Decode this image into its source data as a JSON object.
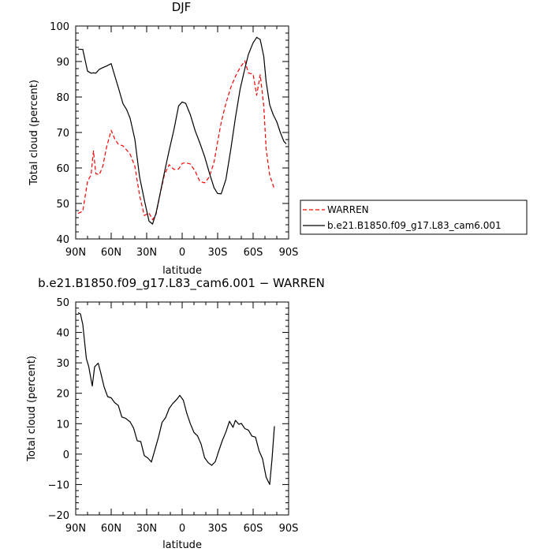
{
  "charts": [
    {
      "title": "DJF",
      "xlabel": "latitude",
      "ylabel": "Total cloud (percent)"
    },
    {
      "title": "b.e21.B1850.f09_g17.L83_cam6.001 − WARREN",
      "xlabel": "latitude",
      "ylabel": "Total cloud (percent)"
    }
  ],
  "legend": {
    "items": [
      {
        "label": "WARREN",
        "color": "#ff0000",
        "style": "dashed"
      },
      {
        "label": "b.e21.B1850.f09_g17.L83_cam6.001",
        "color": "#000000",
        "style": "solid"
      }
    ]
  },
  "chart_data": [
    {
      "type": "line",
      "title": "DJF",
      "xlabel": "latitude",
      "ylabel": "Total cloud (percent)",
      "xlim": [
        90,
        -90
      ],
      "ylim": [
        40,
        100
      ],
      "xticks": [
        90,
        60,
        30,
        0,
        -30,
        -60,
        -90
      ],
      "xtick_labels": [
        "90N",
        "60N",
        "30N",
        "0",
        "30S",
        "60S",
        "90S"
      ],
      "yticks": [
        40,
        50,
        60,
        70,
        80,
        90,
        100
      ],
      "ytick_labels": [
        "40",
        "50",
        "60",
        "70",
        "80",
        "90",
        "100"
      ],
      "grid": false,
      "legend_position": "right",
      "series": [
        {
          "name": "WARREN",
          "color": "#ff0000",
          "dash": true,
          "x": [
            88,
            84,
            80,
            77,
            75,
            73,
            70,
            67,
            64,
            60,
            57,
            54,
            50,
            47,
            44,
            40,
            36,
            32,
            28,
            25,
            22,
            19,
            15,
            11,
            7,
            3,
            0,
            -3,
            -7,
            -11,
            -15,
            -19,
            -23,
            -27,
            -30,
            -33,
            -37,
            -41,
            -45,
            -49,
            -53,
            -56,
            -60,
            -63,
            -66,
            -69,
            -71,
            -74,
            -77,
            -78
          ],
          "y": [
            47.2,
            47.8,
            56.2,
            58.1,
            64.8,
            58.4,
            58.1,
            60.6,
            65.7,
            70.6,
            68.2,
            66.7,
            66.2,
            65.1,
            63.9,
            60.5,
            52.3,
            46.6,
            47.3,
            45.4,
            47.1,
            52.1,
            58.1,
            60.9,
            59.6,
            59.7,
            61.3,
            61.5,
            61.1,
            59.1,
            56.2,
            55.8,
            57.5,
            61.7,
            67.4,
            72.8,
            78.2,
            82.6,
            85.8,
            88.3,
            90.2,
            86.8,
            86.4,
            80.5,
            86.3,
            77.4,
            65.3,
            58.0,
            55.0,
            54.0
          ]
        },
        {
          "name": "b.e21.B1850.f09_g17.L83_cam6.001",
          "color": "#000000",
          "dash": false,
          "x": [
            88,
            84,
            80,
            77,
            75,
            73,
            70,
            67,
            64,
            60,
            57,
            54,
            50,
            47,
            44,
            40,
            36,
            32,
            28,
            25,
            22,
            19,
            15,
            11,
            7,
            3,
            0,
            -3,
            -7,
            -11,
            -15,
            -19,
            -23,
            -27,
            -30,
            -33,
            -37,
            -41,
            -45,
            -49,
            -53,
            -56,
            -60,
            -63,
            -66,
            -69,
            -71,
            -74,
            -77,
            -80,
            -83,
            -86,
            -88
          ],
          "y": [
            93.5,
            93.4,
            87.3,
            86.7,
            86.8,
            86.7,
            87.8,
            88.3,
            88.7,
            89.4,
            86.0,
            82.7,
            78.1,
            76.5,
            74.0,
            68.1,
            57.5,
            51.0,
            45.0,
            44.2,
            47.4,
            52.2,
            58.7,
            64.9,
            70.7,
            77.5,
            78.6,
            78.2,
            74.9,
            70.5,
            67.0,
            63.2,
            58.6,
            54.4,
            52.8,
            52.7,
            56.8,
            65.0,
            74.1,
            82.2,
            88.0,
            92.0,
            95.3,
            96.8,
            96.2,
            91.4,
            84.3,
            77.8,
            75.0,
            73.0,
            70.0,
            67.5,
            66.8
          ]
        }
      ]
    },
    {
      "type": "line",
      "title": "b.e21.B1850.f09_g17.L83_cam6.001 − WARREN",
      "xlabel": "latitude",
      "ylabel": "Total cloud (percent)",
      "xlim": [
        90,
        -90
      ],
      "ylim": [
        -20,
        50
      ],
      "xticks": [
        90,
        60,
        30,
        0,
        -30,
        -60,
        -90
      ],
      "xtick_labels": [
        "90N",
        "60N",
        "30N",
        "0",
        "30S",
        "60S",
        "90S"
      ],
      "yticks": [
        -20,
        -10,
        0,
        10,
        20,
        30,
        40,
        50
      ],
      "ytick_labels": [
        "−20",
        "−10",
        "0",
        "10",
        "20",
        "30",
        "40",
        "50"
      ],
      "grid": false,
      "series": [
        {
          "color": "#000000",
          "dash": false,
          "x": [
            88,
            86,
            84,
            81,
            79,
            76,
            74,
            71,
            69,
            66,
            63,
            60,
            57,
            54,
            51,
            48,
            44,
            41,
            38,
            35,
            32,
            29,
            26,
            23,
            20,
            17,
            14,
            11,
            8,
            5,
            2,
            -1,
            -4,
            -7,
            -10,
            -13,
            -16,
            -19,
            -22,
            -25,
            -28,
            -31,
            -34,
            -37,
            -40,
            -43,
            -45,
            -48,
            -50,
            -53,
            -56,
            -59,
            -62,
            -65,
            -68,
            -71,
            -74,
            -76,
            -78
          ],
          "y": [
            46.5,
            46.1,
            42.6,
            31.4,
            28.8,
            22.4,
            28.7,
            29.9,
            27.0,
            22.1,
            18.9,
            18.5,
            16.9,
            16.0,
            12.2,
            11.8,
            10.6,
            8.5,
            4.4,
            4.1,
            -0.5,
            -1.3,
            -2.6,
            1.5,
            5.6,
            10.4,
            12.0,
            15.0,
            16.6,
            17.8,
            19.3,
            17.7,
            13.3,
            9.9,
            7.1,
            6.0,
            3.3,
            -1.2,
            -2.8,
            -3.7,
            -2.5,
            1.1,
            4.5,
            7.3,
            10.8,
            8.8,
            11.1,
            9.8,
            10.1,
            8.4,
            7.9,
            5.9,
            5.6,
            1.1,
            -1.6,
            -7.6,
            -10.0,
            -1.5,
            9.2
          ]
        }
      ]
    }
  ]
}
